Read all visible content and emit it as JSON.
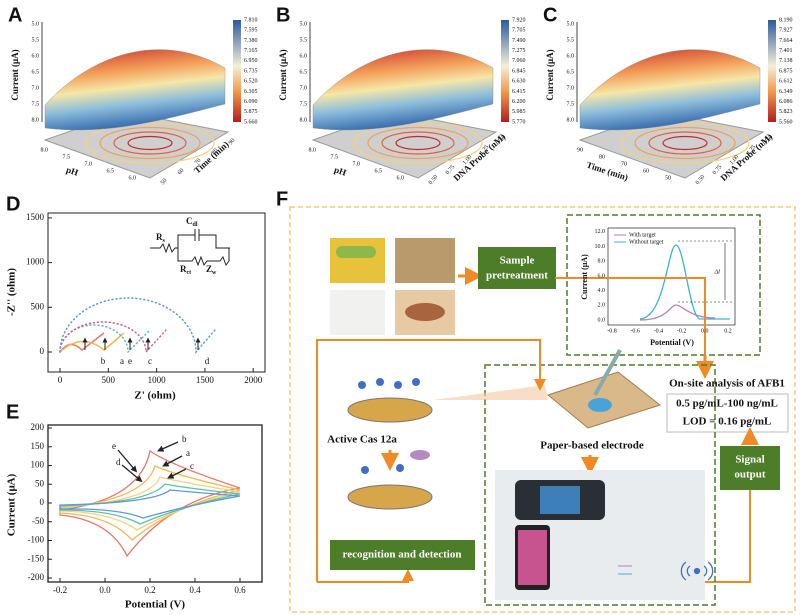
{
  "surfaces": [
    {
      "letter": "A",
      "z_label": "Current (μA)",
      "z_ticks": [
        "5.0",
        "5.5",
        "6.0",
        "6.5",
        "7.0",
        "7.5",
        "8.0"
      ],
      "x_label": "pH",
      "x_ticks": [
        "8.0",
        "7.5",
        "7.0",
        "6.5",
        "6.0"
      ],
      "y_label": "Time (min)",
      "y_ticks": [
        "50",
        "60",
        "70",
        "80",
        "90"
      ],
      "colorbar_ticks": [
        "7.810",
        "7.595",
        "7.380",
        "7.165",
        "6.950",
        "6.735",
        "6.520",
        "6.305",
        "6.090",
        "5.875",
        "5.660"
      ]
    },
    {
      "letter": "B",
      "z_label": "Current (μA)",
      "z_ticks": [
        "5.0",
        "5.5",
        "6.0",
        "6.5",
        "7.0",
        "7.5",
        "8.0"
      ],
      "x_label": "pH",
      "x_ticks": [
        "8.0",
        "7.5",
        "7.0",
        "6.5",
        "6.0"
      ],
      "y_label": "DNA Probe (nM)",
      "y_ticks": [
        "0.50",
        "0.75",
        "1.00",
        "1.25",
        "1.50"
      ],
      "colorbar_ticks": [
        "7.920",
        "7.705",
        "7.490",
        "7.275",
        "7.060",
        "6.845",
        "6.630",
        "6.415",
        "6.200",
        "5.985",
        "5.770"
      ]
    },
    {
      "letter": "C",
      "z_label": "Current (μA)",
      "z_ticks": [
        "5.0",
        "5.5",
        "6.0",
        "6.5",
        "7.0",
        "7.5",
        "8.0"
      ],
      "x_label": "Time (min)",
      "x_ticks": [
        "90",
        "80",
        "70",
        "60",
        "50"
      ],
      "y_label": "DNA Probe (nM)",
      "y_ticks": [
        "0.50",
        "0.75",
        "1.00",
        "1.25",
        "1.50"
      ],
      "colorbar_ticks": [
        "8.190",
        "7.927",
        "7.664",
        "7.401",
        "7.138",
        "6.875",
        "6.612",
        "6.349",
        "6.086",
        "5.823",
        "5.560"
      ]
    }
  ],
  "nyquist": {
    "letter": "D",
    "x_label": "Z' (ohm)",
    "y_label": "-Z'' (ohm)",
    "x_ticks": [
      "0",
      "500",
      "1000",
      "1500",
      "2000"
    ],
    "y_ticks": [
      "0",
      "500",
      "1000",
      "1500"
    ],
    "curve_labels": [
      "b",
      "a",
      "e",
      "c",
      "d"
    ],
    "circuit": [
      {
        "main": "R",
        "sub": "s"
      },
      {
        "main": "C",
        "sub": "dl"
      },
      {
        "main": "R",
        "sub": "ct"
      },
      {
        "main": "Z",
        "sub": "w"
      }
    ]
  },
  "cv": {
    "letter": "E",
    "x_label": "Potential (V)",
    "y_label": "Current (μA)",
    "x_ticks": [
      "-0.2",
      "0.0",
      "0.2",
      "0.4",
      "0.6"
    ],
    "y_ticks": [
      "200",
      "150",
      "100",
      "50",
      "0",
      "-50",
      "-100",
      "-150",
      "-200"
    ],
    "curve_labels": [
      "b",
      "a",
      "c",
      "e",
      "d"
    ]
  },
  "schematic": {
    "letter": "F",
    "sample_pretreatment": [
      "Sample",
      "pretreatment"
    ],
    "signal_output": [
      "Signal",
      "output"
    ],
    "onsite": "On-site analysis of AFB1",
    "range": "0.5 pg/mL-100 ng/mL",
    "lod": "LOD = 0.16 pg/mL",
    "cas": "Active Cas 12a",
    "electrode": "Paper-based electrode",
    "recognition": "recognition and detection",
    "inset": {
      "x_label": "Potential (V)",
      "y_label": "Current (μA)",
      "x_ticks": [
        "-0.8",
        "-0.6",
        "-0.4",
        "-0.2",
        "0.0",
        "0.2"
      ],
      "y_ticks": [
        "0.0",
        "2.0",
        "4.0",
        "6.0",
        "8.0",
        "10.0",
        "12.0"
      ],
      "legend": [
        "With target",
        "Without target"
      ],
      "delta": "ΔI"
    }
  }
}
